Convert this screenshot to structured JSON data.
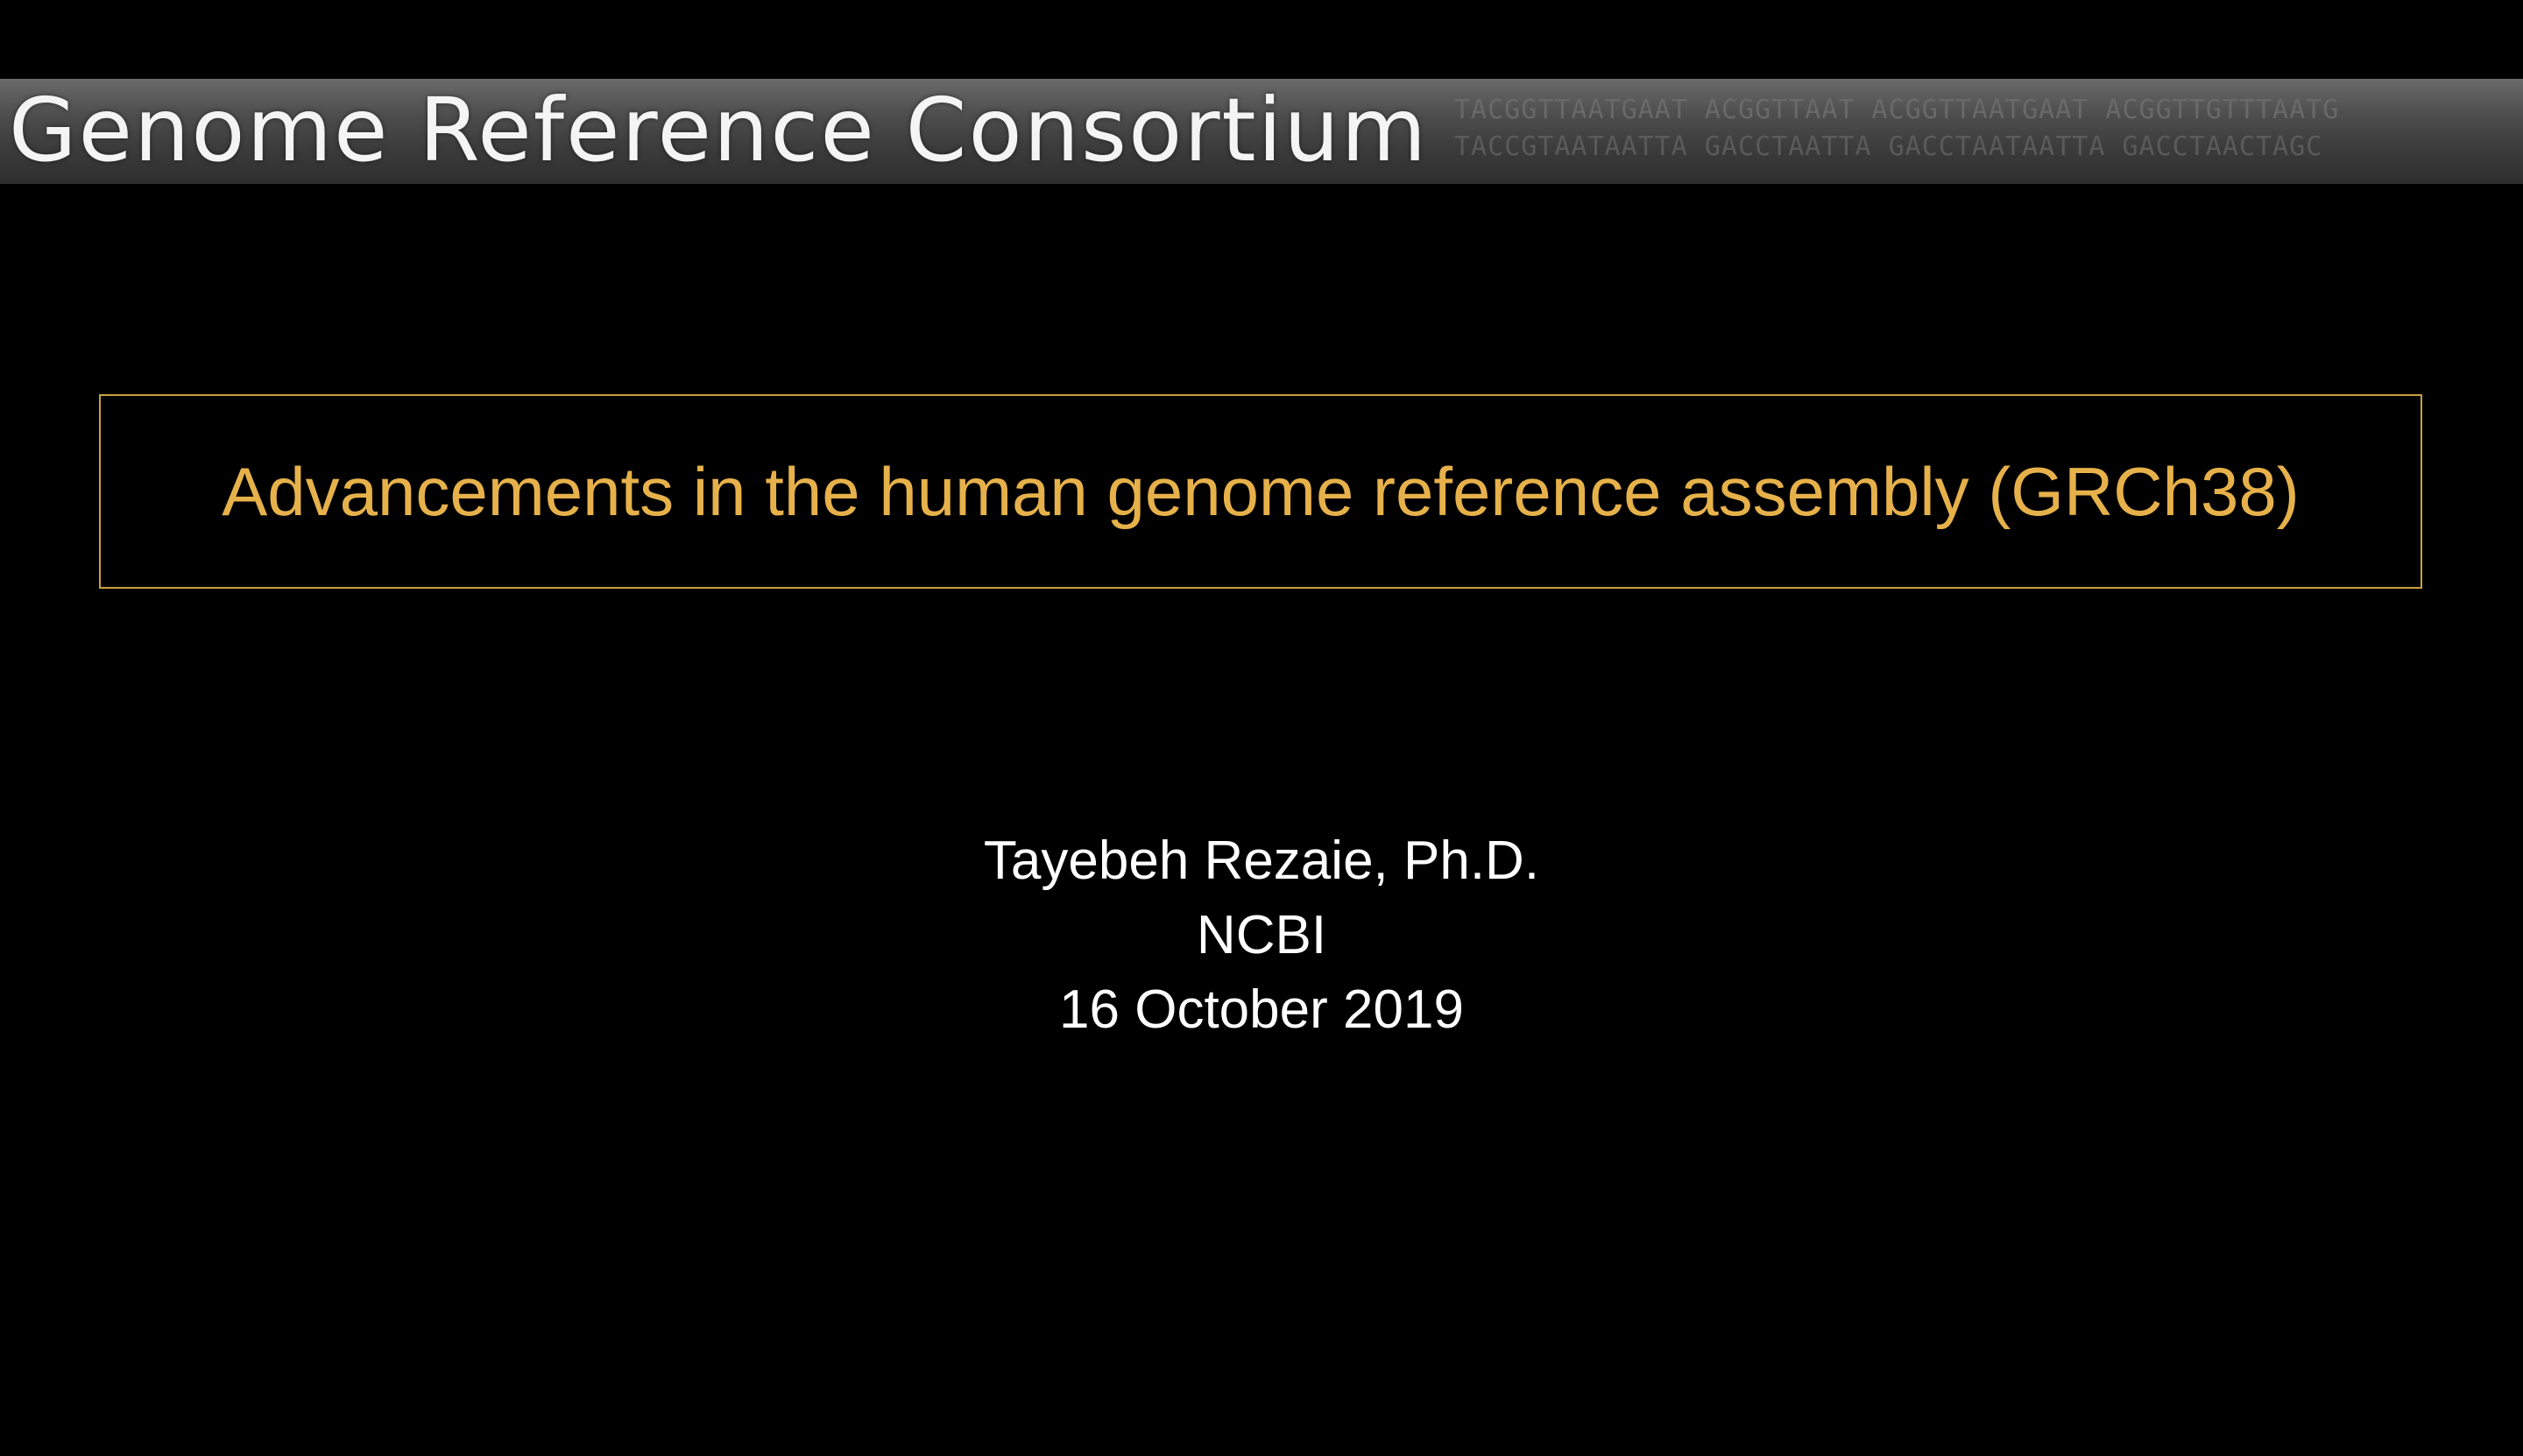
{
  "banner": {
    "title": "Genome Reference Consortium",
    "sequence_row_1": "TACGGTTAATGAAT ACGGTTAAT ACGGTTAATGAAT ACGGTTGTTTAATG",
    "sequence_row_2": "TACCGTAATAATTA GACCTAATTA GACCTAATAATTA GACCTAACTAGC"
  },
  "title": {
    "text": "Advancements in the human genome reference assembly (GRCh38)",
    "color": "#e6b14a",
    "border_color": "#c9a042"
  },
  "byline": {
    "author": "Tayebeh Rezaie, Ph.D.",
    "organization": "NCBI",
    "date": "16 October 2019"
  }
}
